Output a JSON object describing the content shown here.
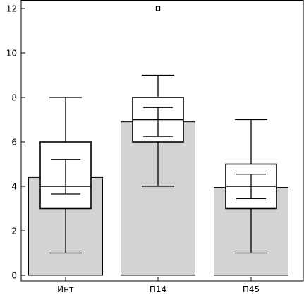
{
  "chart_data": {
    "type": "boxplot",
    "categories": [
      "Инт",
      "П14",
      "П45"
    ],
    "bars": [
      4.4,
      6.9,
      3.95
    ],
    "boxes": [
      {
        "category": "Инт",
        "min": 1,
        "q1": 3,
        "median": 4,
        "q3": 6,
        "max": 8,
        "ci_low": 3.65,
        "ci_high": 5.2
      },
      {
        "category": "П14",
        "min": 4,
        "q1": 6,
        "median": 7,
        "q3": 8,
        "max": 9,
        "ci_low": 6.25,
        "ci_high": 7.55
      },
      {
        "category": "П45",
        "min": 1,
        "q1": 3,
        "median": 4,
        "q3": 5,
        "max": 7,
        "ci_low": 3.45,
        "ci_high": 4.55
      }
    ],
    "outliers": [
      {
        "category": "П14",
        "value": 12
      }
    ],
    "ylim": [
      0,
      12.7
    ],
    "yticks": [
      0,
      2,
      4,
      6,
      8,
      10,
      12
    ],
    "title": "",
    "xlabel": "",
    "ylabel": "",
    "colors": {
      "bar_fill": "#d3d3d3",
      "line": "#000000",
      "box_fill": "#ffffff"
    }
  }
}
